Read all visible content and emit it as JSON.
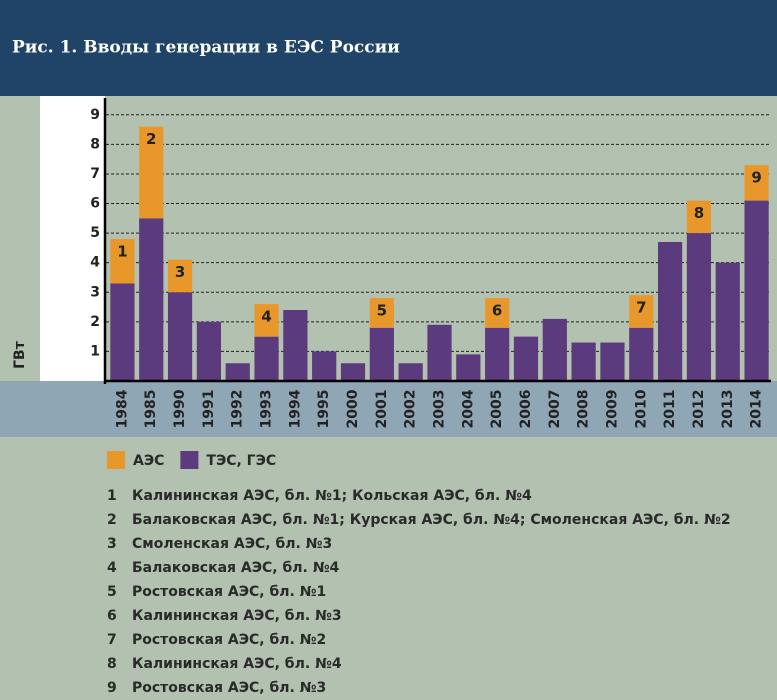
{
  "chart_data": {
    "type": "stacked_bar",
    "title": "Рис. 1. Вводы генерации в ЕЭС России",
    "y_label": "ГВт",
    "categories": [
      "1984",
      "1985",
      "1990",
      "1991",
      "1992",
      "1993",
      "1994",
      "1995",
      "2000",
      "2001",
      "2002",
      "2003",
      "2004",
      "2005",
      "2006",
      "2007",
      "2008",
      "2009",
      "2010",
      "2011",
      "2012",
      "2013",
      "2014"
    ],
    "series": [
      {
        "name": "ТЭС, ГЭС",
        "color": "#5b3a7e",
        "values": [
          3.3,
          5.5,
          3.0,
          2.0,
          0.6,
          1.5,
          2.4,
          1.0,
          0.6,
          1.8,
          0.6,
          1.9,
          0.9,
          1.8,
          1.5,
          2.1,
          1.3,
          1.3,
          1.8,
          4.7,
          5.0,
          4.0,
          6.1
        ]
      },
      {
        "name": "АЭС",
        "color": "#e8982a",
        "values": [
          1.5,
          3.1,
          1.1,
          null,
          null,
          1.1,
          null,
          null,
          null,
          1.0,
          null,
          null,
          null,
          1.0,
          null,
          null,
          null,
          null,
          1.1,
          null,
          1.1,
          null,
          1.2
        ],
        "segment_labels": [
          "1",
          "2",
          "3",
          null,
          null,
          "4",
          null,
          null,
          null,
          "5",
          null,
          null,
          null,
          "6",
          null,
          null,
          null,
          null,
          "7",
          null,
          "8",
          null,
          "9"
        ]
      }
    ],
    "legend_order": [
      1,
      0
    ],
    "ylim": [
      0,
      9.5
    ],
    "yticks": [
      1,
      2,
      3,
      4,
      5,
      6,
      7,
      8,
      9
    ],
    "grid": true,
    "notes": [
      {
        "label": "1",
        "text": "Калининская АЭС, бл. №1; Кольская АЭС, бл. №4"
      },
      {
        "label": "2",
        "text": "Балаковская АЭС, бл. №1; Курская АЭС, бл. №4; Смоленская АЭС, бл. №2"
      },
      {
        "label": "3",
        "text": "Смоленская АЭС, бл. №3"
      },
      {
        "label": "4",
        "text": "Балаковская АЭС, бл. №4"
      },
      {
        "label": "5",
        "text": "Ростовская АЭС, бл. №1"
      },
      {
        "label": "6",
        "text": "Калининская АЭС, бл. №3"
      },
      {
        "label": "7",
        "text": "Ростовская АЭС, бл. №2"
      },
      {
        "label": "8",
        "text": "Калининская АЭС, бл. №4"
      },
      {
        "label": "9",
        "text": "Ростовская АЭС, бл. №3"
      }
    ]
  }
}
